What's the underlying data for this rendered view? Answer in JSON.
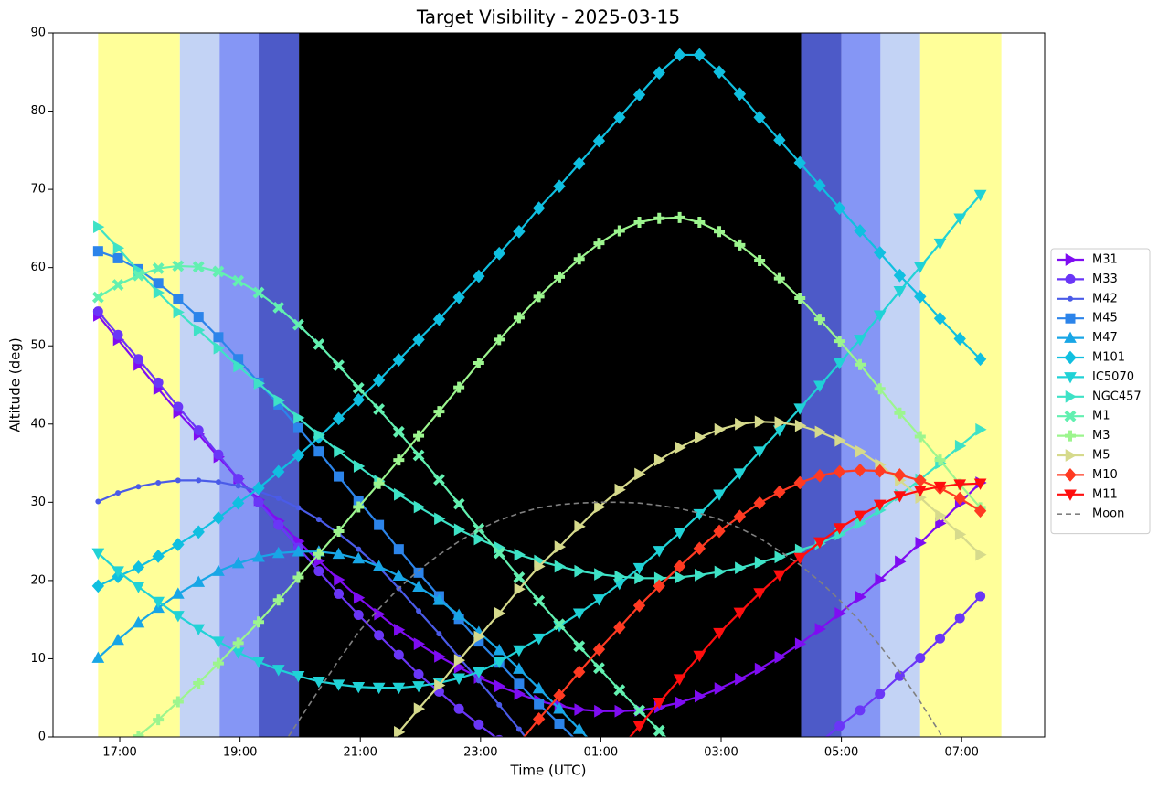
{
  "chart_data": {
    "type": "line",
    "title": "Target Visibility - 2025-03-15",
    "xlabel": "Time (UTC)",
    "ylabel": "Altitude (deg)",
    "xlim": [
      15.89,
      32.38
    ],
    "ylim": [
      0,
      90
    ],
    "xticks": [
      {
        "value": 17,
        "label": "17:00"
      },
      {
        "value": 19,
        "label": "19:00"
      },
      {
        "value": 21,
        "label": "21:00"
      },
      {
        "value": 23,
        "label": "23:00"
      },
      {
        "value": 25,
        "label": "01:00"
      },
      {
        "value": 27,
        "label": "03:00"
      },
      {
        "value": 29,
        "label": "05:00"
      },
      {
        "value": 31,
        "label": "07:00"
      }
    ],
    "yticks": [
      0,
      10,
      20,
      30,
      40,
      50,
      60,
      70,
      80,
      90
    ],
    "legend": "right-outside",
    "bands": [
      {
        "start": 16.64,
        "end": 18.0,
        "color": "#ffff99"
      },
      {
        "start": 18.0,
        "end": 18.66,
        "color": "#c3d3f5"
      },
      {
        "start": 18.66,
        "end": 19.31,
        "color": "#8596f5"
      },
      {
        "start": 19.31,
        "end": 19.98,
        "color": "#4d5ac8"
      },
      {
        "start": 19.98,
        "end": 28.33,
        "color": "#000000"
      },
      {
        "start": 28.33,
        "end": 29.0,
        "color": "#4d5ac8"
      },
      {
        "start": 29.0,
        "end": 29.65,
        "color": "#8596f5"
      },
      {
        "start": 29.65,
        "end": 30.31,
        "color": "#c3d3f5"
      },
      {
        "start": 30.31,
        "end": 31.66,
        "color": "#ffff99"
      }
    ],
    "x": [
      16.64,
      16.97,
      17.31,
      17.64,
      17.97,
      18.31,
      18.64,
      18.97,
      19.31,
      19.64,
      19.97,
      20.31,
      20.64,
      20.97,
      21.31,
      21.64,
      21.97,
      22.31,
      22.64,
      22.97,
      23.31,
      23.64,
      23.97,
      24.31,
      24.64,
      24.97,
      25.31,
      25.64,
      25.97,
      26.31,
      26.64,
      26.97,
      27.31,
      27.64,
      27.97,
      28.31,
      28.64,
      28.97,
      29.31,
      29.64,
      29.97,
      30.31,
      30.64,
      30.97,
      31.31
    ],
    "series": [
      {
        "name": "M31",
        "color": "#7f0cf2",
        "marker": "triangle-right",
        "values": [
          53.9,
          50.8,
          47.6,
          44.5,
          41.5,
          38.7,
          35.8,
          33.0,
          30.3,
          27.6,
          25.0,
          22.5,
          20.1,
          17.8,
          15.7,
          13.7,
          11.9,
          10.3,
          8.9,
          7.6,
          6.5,
          5.5,
          4.6,
          4.0,
          3.5,
          3.3,
          3.3,
          3.4,
          3.8,
          4.4,
          5.2,
          6.2,
          7.4,
          8.7,
          10.2,
          11.9,
          13.8,
          15.8,
          17.9,
          20.1,
          22.4,
          24.8,
          27.3,
          29.9,
          32.5
        ]
      },
      {
        "name": "M33",
        "color": "#6a36f7",
        "marker": "circle",
        "values": [
          54.4,
          51.4,
          48.3,
          45.3,
          42.2,
          39.2,
          36.1,
          33.0,
          30.0,
          27.1,
          24.2,
          21.2,
          18.3,
          15.6,
          13.0,
          10.5,
          8.0,
          5.8,
          3.6,
          1.6,
          -0.4,
          null,
          null,
          null,
          null,
          null,
          null,
          null,
          null,
          null,
          null,
          null,
          null,
          null,
          null,
          null,
          -0.7,
          1.4,
          3.4,
          5.5,
          7.8,
          10.1,
          12.6,
          15.2,
          18.0
        ]
      },
      {
        "name": "M42",
        "color": "#4a5be8",
        "marker": "dot",
        "values": [
          30.1,
          31.2,
          32.0,
          32.5,
          32.8,
          32.8,
          32.6,
          32.1,
          31.4,
          30.5,
          29.3,
          27.8,
          26.0,
          24.0,
          21.7,
          19.0,
          16.1,
          13.2,
          10.2,
          7.2,
          4.1,
          1.0,
          -2.1,
          null,
          null,
          null,
          null,
          null,
          null,
          null,
          null,
          null,
          null,
          null,
          null,
          null,
          null,
          null,
          null,
          null,
          null,
          null,
          null,
          null,
          null
        ]
      },
      {
        "name": "M45",
        "color": "#2c84ea",
        "marker": "square",
        "values": [
          62.1,
          61.2,
          59.8,
          58.0,
          56.0,
          53.7,
          51.1,
          48.3,
          45.3,
          42.5,
          39.5,
          36.5,
          33.3,
          30.2,
          27.1,
          24.0,
          21.0,
          18.0,
          15.1,
          12.2,
          9.5,
          6.8,
          4.2,
          1.7,
          -0.8,
          null,
          null,
          null,
          null,
          null,
          null,
          null,
          null,
          null,
          null,
          null,
          null,
          null,
          null,
          null,
          null,
          null,
          null,
          null,
          null
        ]
      },
      {
        "name": "M47",
        "color": "#18a6e6",
        "marker": "triangle-up",
        "values": [
          10.1,
          12.4,
          14.6,
          16.5,
          18.3,
          19.8,
          21.2,
          22.2,
          23.0,
          23.5,
          23.7,
          23.7,
          23.4,
          22.8,
          21.8,
          20.6,
          19.2,
          17.5,
          15.6,
          13.4,
          11.1,
          8.7,
          6.2,
          3.6,
          1.0,
          -1.6,
          null,
          null,
          null,
          null,
          null,
          null,
          null,
          null,
          null,
          null,
          null,
          null,
          null,
          null,
          null,
          null,
          null,
          null,
          null
        ]
      },
      {
        "name": "M101",
        "color": "#10bfe0",
        "marker": "diamond",
        "values": [
          19.3,
          20.5,
          21.7,
          23.1,
          24.6,
          26.2,
          28.0,
          29.9,
          31.8,
          33.9,
          36.0,
          38.3,
          40.7,
          43.1,
          45.6,
          48.2,
          50.8,
          53.4,
          56.2,
          58.9,
          61.8,
          64.6,
          67.6,
          70.4,
          73.3,
          76.2,
          79.2,
          82.1,
          84.9,
          87.2,
          87.2,
          85.0,
          82.2,
          79.2,
          76.3,
          73.4,
          70.5,
          67.6,
          64.7,
          61.9,
          59.0,
          56.3,
          53.5,
          50.9,
          48.3
        ]
      },
      {
        "name": "IC5070",
        "color": "#20d2d6",
        "marker": "triangle-down",
        "values": [
          23.5,
          21.2,
          19.2,
          17.3,
          15.5,
          13.8,
          12.2,
          10.8,
          9.6,
          8.6,
          7.8,
          7.1,
          6.7,
          6.4,
          6.3,
          6.3,
          6.5,
          6.9,
          7.5,
          8.3,
          9.6,
          11.1,
          12.6,
          14.2,
          15.8,
          17.6,
          19.6,
          21.6,
          23.8,
          26.1,
          28.5,
          31.0,
          33.7,
          36.5,
          39.2,
          42.0,
          44.9,
          47.8,
          50.8,
          53.9,
          57.0,
          60.1,
          63.1,
          66.3,
          69.3
        ]
      },
      {
        "name": "NGC457",
        "color": "#3ee2c6",
        "marker": "triangle-right",
        "values": [
          65.2,
          62.5,
          59.6,
          56.8,
          54.3,
          52.0,
          49.7,
          47.4,
          45.2,
          43.0,
          40.8,
          38.6,
          36.5,
          34.6,
          32.7,
          31.0,
          29.4,
          27.9,
          26.5,
          25.3,
          24.2,
          23.3,
          22.5,
          21.8,
          21.2,
          20.8,
          20.5,
          20.3,
          20.3,
          20.4,
          20.7,
          21.1,
          21.6,
          22.3,
          23.0,
          23.9,
          24.7,
          25.9,
          27.3,
          29.0,
          30.9,
          32.9,
          35.0,
          37.2,
          39.3
        ]
      },
      {
        "name": "M1",
        "color": "#62f0b0",
        "marker": "x",
        "values": [
          56.2,
          57.8,
          59.0,
          59.9,
          60.2,
          60.1,
          59.5,
          58.3,
          56.8,
          54.9,
          52.7,
          50.2,
          47.5,
          44.6,
          41.9,
          39.0,
          36.0,
          32.9,
          29.8,
          26.6,
          23.5,
          20.4,
          17.4,
          14.4,
          11.6,
          8.8,
          6.0,
          3.4,
          0.8,
          -1.8,
          null,
          null,
          null,
          null,
          null,
          null,
          null,
          null,
          null,
          null,
          null,
          null,
          null,
          null,
          null
        ]
      },
      {
        "name": "M3",
        "color": "#9cf58e",
        "marker": "plus",
        "values": [
          null,
          -2.0,
          0.1,
          2.2,
          4.5,
          6.9,
          9.4,
          12.0,
          14.7,
          17.5,
          20.4,
          23.4,
          26.3,
          29.4,
          32.4,
          35.4,
          38.5,
          41.6,
          44.7,
          47.8,
          50.8,
          53.6,
          56.3,
          58.8,
          61.1,
          63.1,
          64.7,
          65.8,
          66.3,
          66.4,
          65.8,
          64.6,
          62.9,
          60.9,
          58.6,
          56.1,
          53.4,
          50.6,
          47.6,
          44.5,
          41.4,
          38.4,
          35.4,
          32.3,
          29.3
        ]
      },
      {
        "name": "M5",
        "color": "#d6da8c",
        "marker": "triangle-right",
        "values": [
          null,
          null,
          null,
          null,
          null,
          null,
          null,
          null,
          null,
          null,
          null,
          null,
          null,
          null,
          -2.4,
          0.6,
          3.6,
          6.6,
          9.8,
          12.8,
          15.8,
          18.9,
          21.8,
          24.3,
          26.9,
          29.4,
          31.6,
          33.6,
          35.4,
          37.0,
          38.3,
          39.3,
          40.0,
          40.3,
          40.2,
          39.8,
          39.0,
          37.9,
          36.5,
          34.8,
          32.8,
          30.6,
          28.3,
          25.9,
          23.3
        ]
      },
      {
        "name": "M10",
        "color": "#ff3a22",
        "marker": "diamond",
        "values": [
          null,
          null,
          null,
          null,
          null,
          null,
          null,
          null,
          null,
          null,
          null,
          null,
          null,
          null,
          null,
          null,
          null,
          null,
          null,
          null,
          null,
          -0.8,
          2.3,
          5.3,
          8.3,
          11.2,
          14.0,
          16.8,
          19.3,
          21.8,
          24.1,
          26.3,
          28.2,
          29.9,
          31.3,
          32.5,
          33.4,
          33.9,
          34.1,
          34.0,
          33.5,
          32.8,
          31.8,
          30.5,
          28.9
        ]
      },
      {
        "name": "M11",
        "color": "#ff0e0e",
        "marker": "triangle-down",
        "values": [
          null,
          null,
          null,
          null,
          null,
          null,
          null,
          null,
          null,
          null,
          null,
          null,
          null,
          null,
          null,
          null,
          null,
          null,
          null,
          null,
          null,
          null,
          null,
          null,
          null,
          null,
          -1.6,
          1.4,
          4.4,
          7.4,
          10.4,
          13.3,
          15.9,
          18.4,
          20.7,
          22.9,
          24.9,
          26.7,
          28.3,
          29.7,
          30.8,
          31.5,
          32.0,
          32.3,
          32.4
        ]
      },
      {
        "name": "Moon",
        "color": "#808080",
        "linestyle": "dashed",
        "values": [
          null,
          null,
          null,
          null,
          null,
          null,
          null,
          null,
          null,
          -1.9,
          2.0,
          6.0,
          9.8,
          13.4,
          16.4,
          19.0,
          21.3,
          23.3,
          25.0,
          26.5,
          27.7,
          28.6,
          29.3,
          29.7,
          29.9,
          30.0,
          30.0,
          29.9,
          29.6,
          29.2,
          28.6,
          27.8,
          26.7,
          25.4,
          23.8,
          22.0,
          19.9,
          17.5,
          14.8,
          11.7,
          8.3,
          4.5,
          0.5,
          -3.7,
          null
        ]
      }
    ]
  }
}
